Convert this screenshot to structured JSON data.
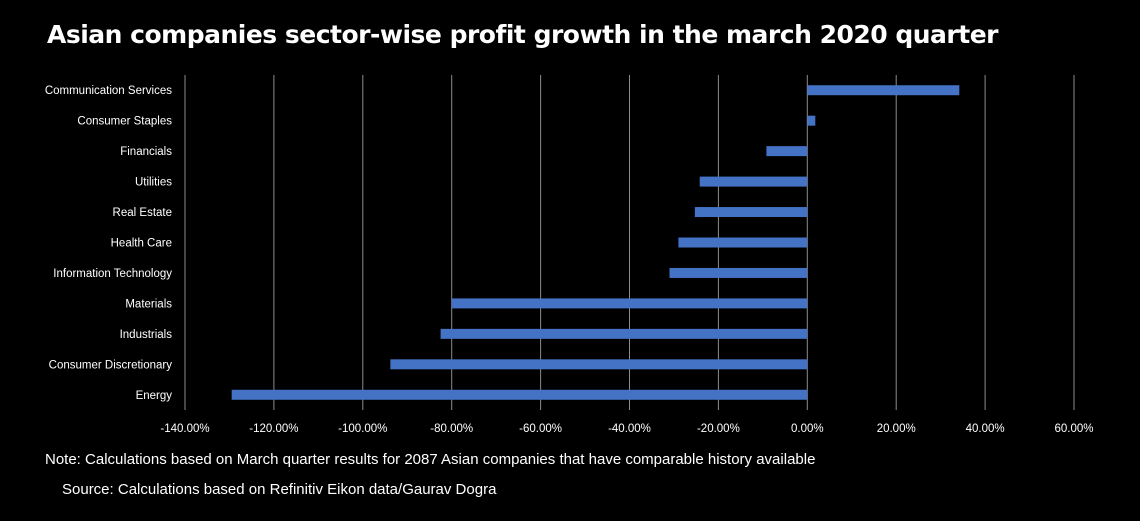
{
  "title": "Asian companies sector-wise profit growth in the march 2020 quarter",
  "note": "Note: Calculations based on March quarter results for 2087 Asian companies that have comparable history available",
  "source": "Source: Calculations based on Refinitiv Eikon data/Gaurav Dogra",
  "bar_color": "#4472C4",
  "chart_data": {
    "type": "bar",
    "orientation": "horizontal",
    "categories": [
      "Communication Services",
      "Consumer Staples",
      "Financials",
      "Utilities",
      "Real Estate",
      "Health Care",
      "Information Technology",
      "Materials",
      "Industrials",
      "Consumer Discretionary",
      "Energy"
    ],
    "values": [
      34.2,
      1.8,
      -9.2,
      -24.2,
      -25.3,
      -29.0,
      -31.0,
      -80.0,
      -82.5,
      -93.8,
      -129.5
    ],
    "xlim": [
      -140,
      60
    ],
    "xticks": [
      -140,
      -120,
      -100,
      -80,
      -60,
      -40,
      -20,
      0,
      20,
      40,
      60
    ],
    "xtick_labels": [
      "-140.00%",
      "-120.00%",
      "-100.00%",
      "-80.00%",
      "-60.00%",
      "-40.00%",
      "-20.00%",
      "0.00%",
      "20.00%",
      "40.00%",
      "60.00%"
    ],
    "grid": true,
    "legend": "none"
  }
}
